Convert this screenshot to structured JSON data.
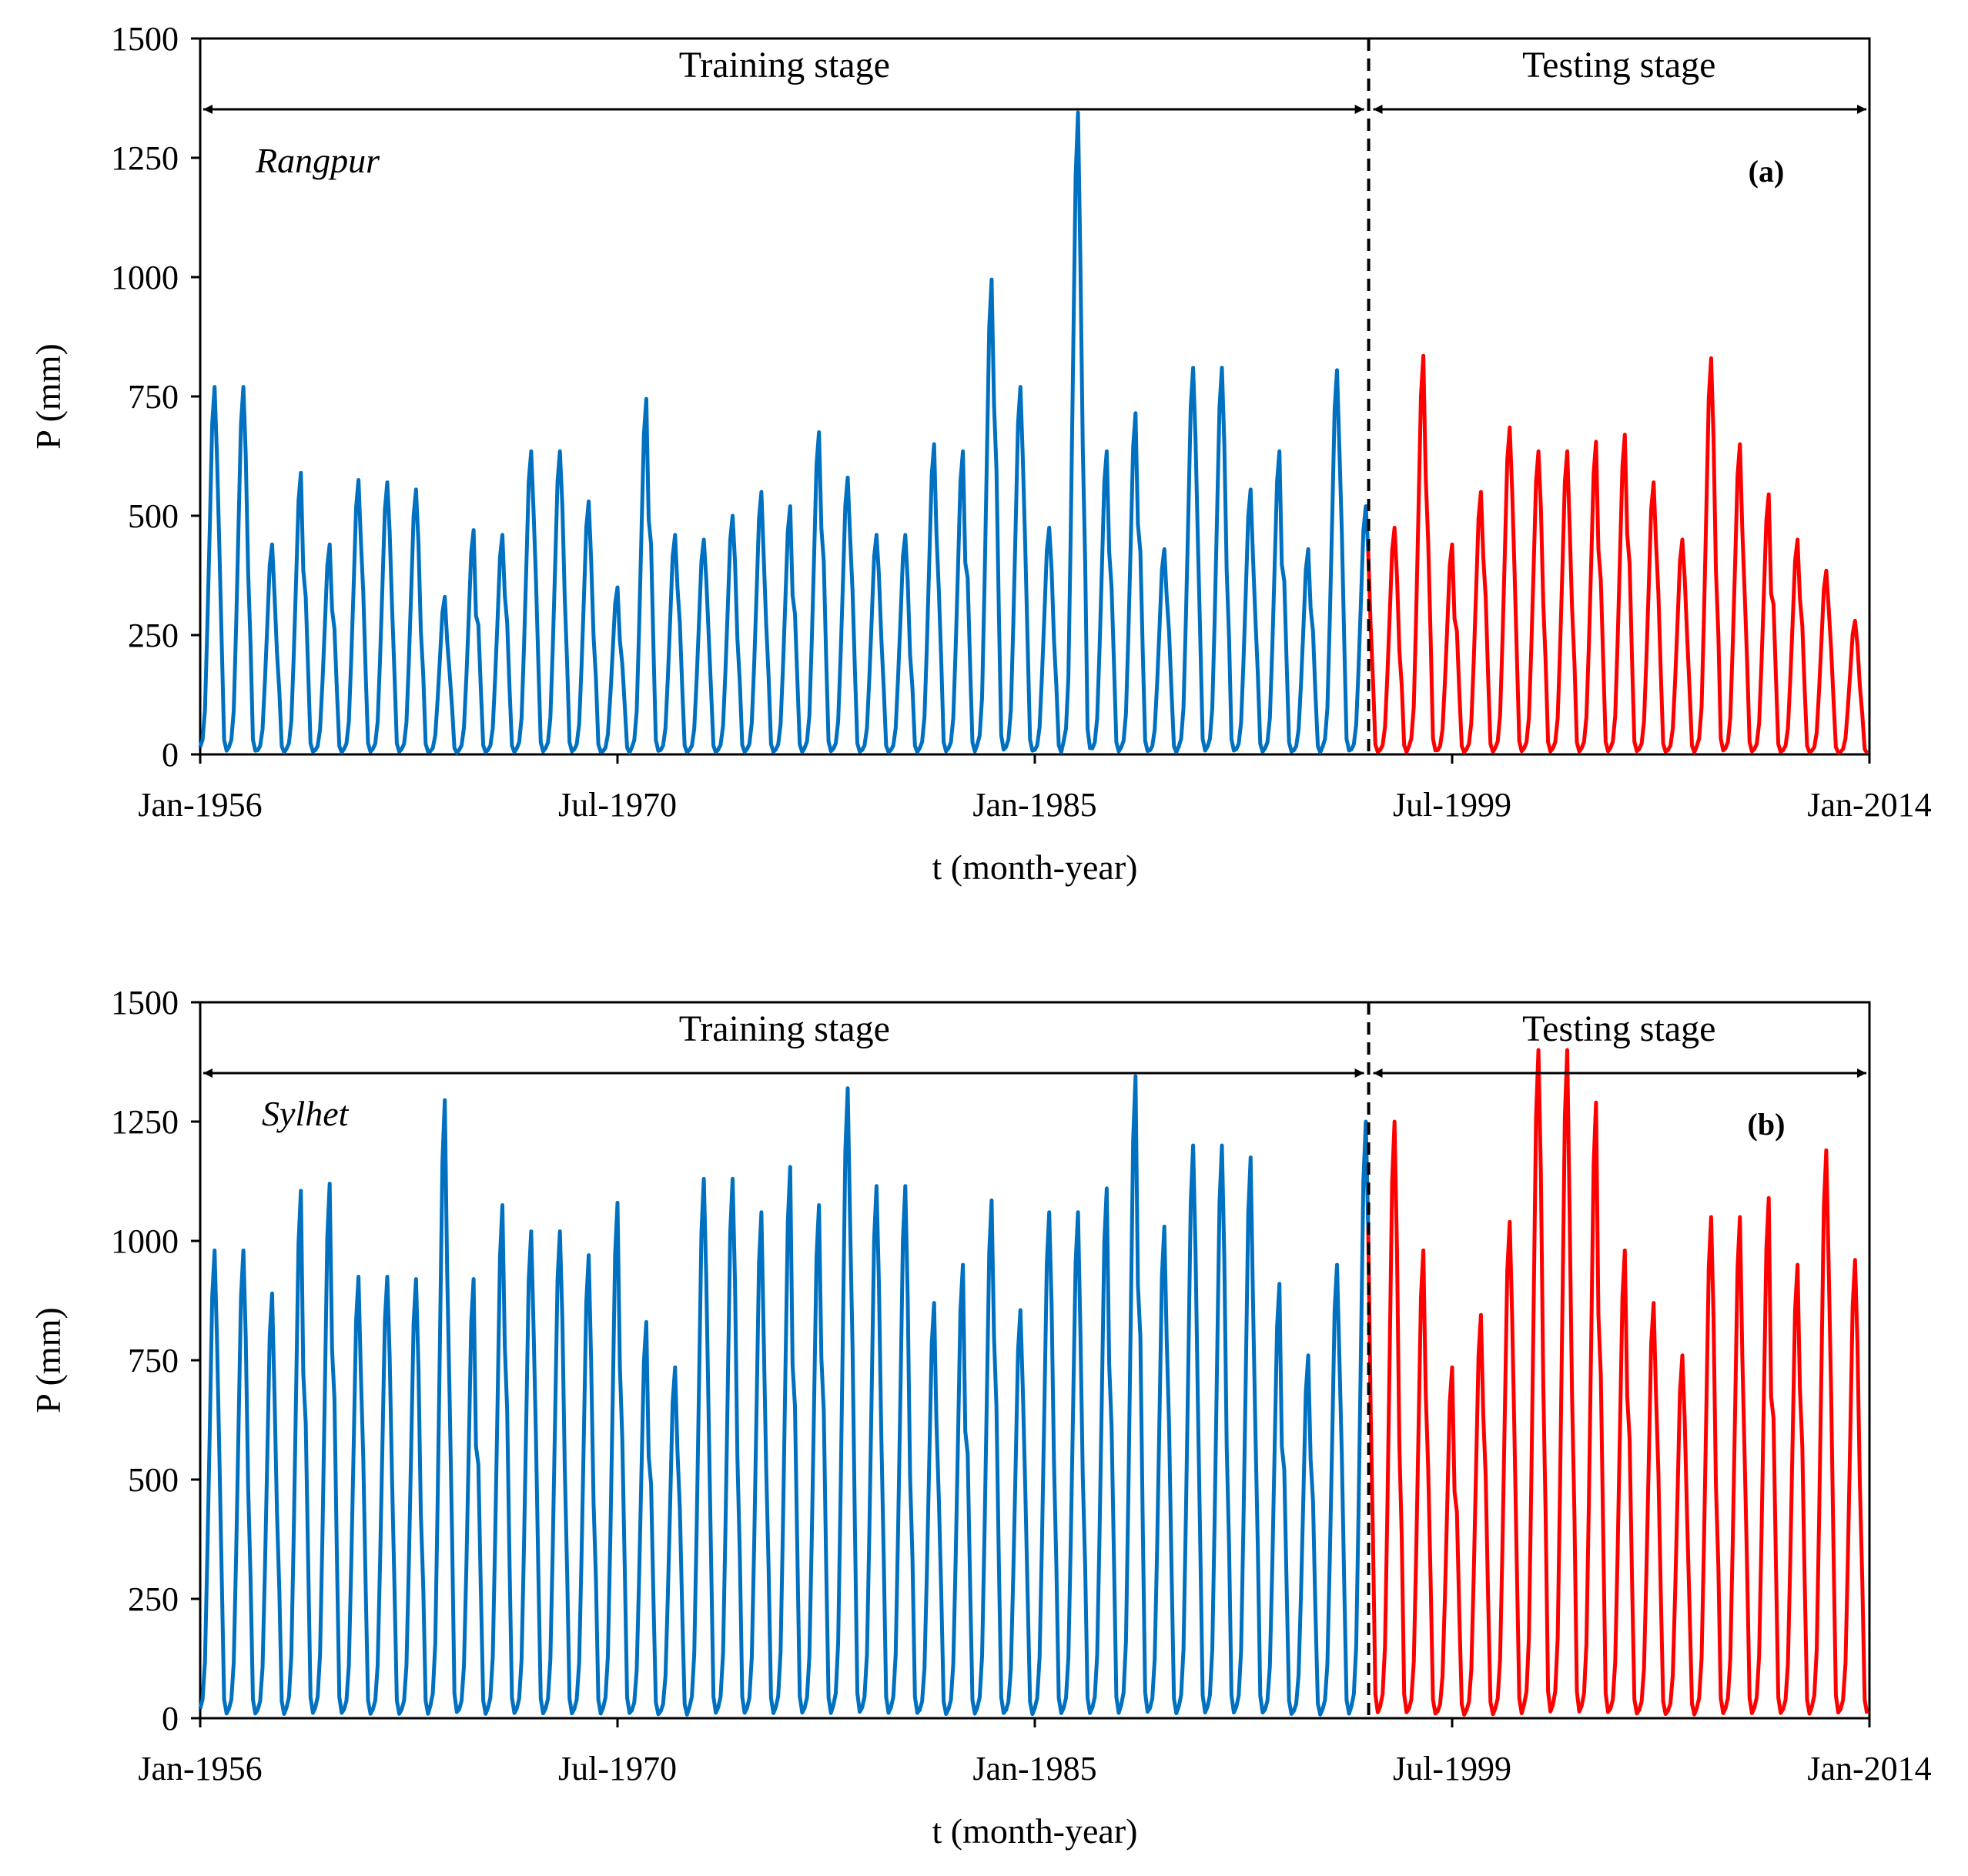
{
  "colors": {
    "training": "#0070C0",
    "testing": "#FF0000",
    "axis": "#000000"
  },
  "chart_data": [
    {
      "type": "line",
      "panel_label": "(a)",
      "station": "Rangpur",
      "xlabel": "t (month-year)",
      "ylabel": "P (mm)",
      "ylim": [
        0,
        1500
      ],
      "yticks": [
        "0",
        "250",
        "500",
        "750",
        "1000",
        "1250",
        "1500"
      ],
      "xlim_years": [
        1956.0,
        2014.0
      ],
      "xticks": [
        {
          "label": "Jan-1956",
          "year": 1956.0
        },
        {
          "label": "Jul-1970",
          "year": 1970.5
        },
        {
          "label": "Jan-1985",
          "year": 1985.0
        },
        {
          "label": "Jul-1999",
          "year": 1999.5
        },
        {
          "label": "Jan-2014",
          "year": 2014.0
        }
      ],
      "split_year": 1996.6,
      "stages": {
        "training": "Training stage",
        "testing": "Testing stage"
      },
      "annual_peaks": [
        770,
        440,
        590,
        440,
        575,
        570,
        555,
        330,
        470,
        460,
        635,
        530,
        350,
        745,
        460,
        450,
        500,
        550,
        520,
        675,
        580,
        460,
        650,
        635,
        995,
        770,
        475,
        1345,
        635,
        715,
        430,
        810,
        555,
        635,
        430,
        805,
        520,
        475,
        835,
        440,
        550,
        685,
        635,
        655,
        670,
        570,
        450,
        830,
        650,
        545,
        450,
        385,
        280
      ],
      "series": [
        {
          "name": "Training",
          "start_year": 1956.0,
          "end_year": 1996.6
        },
        {
          "name": "Testing",
          "start_year": 1996.6,
          "end_year": 2014.0
        }
      ]
    },
    {
      "type": "line",
      "panel_label": "(b)",
      "station": "Sylhet",
      "xlabel": "t (month-year)",
      "ylabel": "P (mm)",
      "ylim": [
        0,
        1500
      ],
      "yticks": [
        "0",
        "250",
        "500",
        "750",
        "1000",
        "1250",
        "1500"
      ],
      "xlim_years": [
        1956.0,
        2014.0
      ],
      "xticks": [
        {
          "label": "Jan-1956",
          "year": 1956.0
        },
        {
          "label": "Jul-1970",
          "year": 1970.5
        },
        {
          "label": "Jan-1985",
          "year": 1985.0
        },
        {
          "label": "Jul-1999",
          "year": 1999.5
        },
        {
          "label": "Jan-2014",
          "year": 2014.0
        }
      ],
      "split_year": 1996.6,
      "stages": {
        "training": "Training stage",
        "testing": "Testing stage"
      },
      "annual_peaks": [
        980,
        890,
        1105,
        1120,
        925,
        920,
        1295,
        920,
        1075,
        1020,
        970,
        1080,
        830,
        735,
        1130,
        1060,
        1155,
        1075,
        1320,
        1115,
        870,
        950,
        1085,
        855,
        1060,
        1110,
        1345,
        1030,
        1200,
        1175,
        910,
        760,
        950,
        1250,
        980,
        735,
        845,
        1040,
        1400,
        1290,
        980,
        870,
        760,
        1050,
        1090,
        950,
        1190,
        960
      ],
      "series": [
        {
          "name": "Training",
          "start_year": 1956.0,
          "end_year": 1996.6
        },
        {
          "name": "Testing",
          "start_year": 1996.6,
          "end_year": 2014.0
        }
      ]
    }
  ]
}
